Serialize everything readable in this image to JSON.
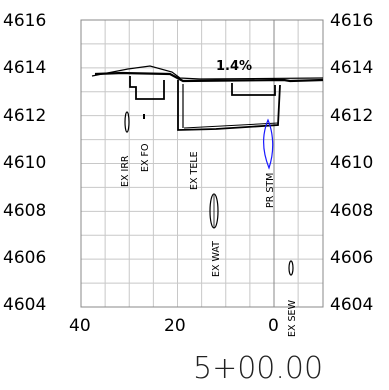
{
  "section": {
    "station": "5+00.00",
    "grade": "1.4%",
    "elevation_ticks": [
      "4616",
      "4614",
      "4612",
      "4610",
      "4608",
      "4606",
      "4604"
    ],
    "offset_ticks": [
      "40",
      "20",
      "0"
    ],
    "grid": true,
    "colors": {
      "grid": "#c8c8c8",
      "frame": "#888888",
      "linework": "#000000",
      "storm": "#1a1aff"
    }
  },
  "utilities": [
    {
      "id": "ex-irr",
      "label": "EX IRR"
    },
    {
      "id": "ex-fo",
      "label": "EX FO"
    },
    {
      "id": "ex-tele",
      "label": "EX TELE"
    },
    {
      "id": "pr-stm",
      "label": "PR STM"
    },
    {
      "id": "ex-wat",
      "label": "EX WAT"
    },
    {
      "id": "ex-sew",
      "label": "EX SEW"
    }
  ]
}
